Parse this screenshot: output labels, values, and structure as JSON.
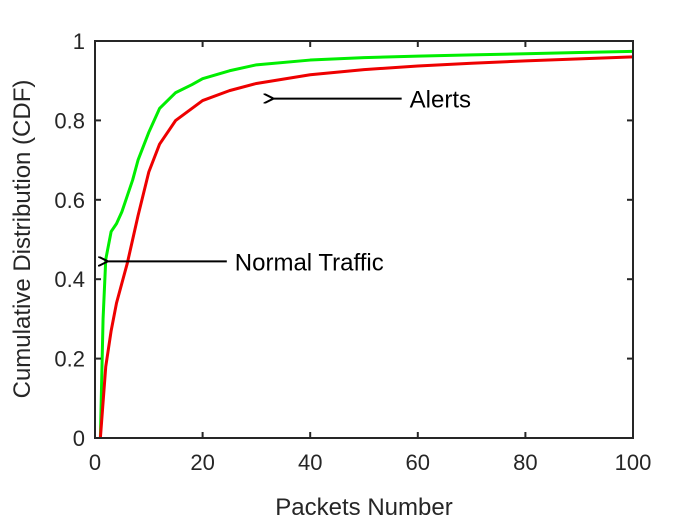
{
  "chart_data": {
    "type": "line",
    "title": "",
    "xlabel": "Packets Number",
    "ylabel": "Cumulative Distribution (CDF)",
    "xlim": [
      0,
      100
    ],
    "ylim": [
      0,
      1
    ],
    "x_ticks": [
      "0",
      "20",
      "40",
      "60",
      "80",
      "100"
    ],
    "y_ticks": [
      "0",
      "0.2",
      "0.4",
      "0.6",
      "0.8",
      "1"
    ],
    "grid": false,
    "legend": "none",
    "series": [
      {
        "color": "#00ee00",
        "x": [
          1,
          1.5,
          2,
          3,
          4,
          5,
          6,
          7,
          8,
          10,
          12,
          15,
          18,
          20,
          25,
          30,
          40,
          50,
          60,
          70,
          80,
          90,
          100
        ],
        "y": [
          0.0,
          0.3,
          0.45,
          0.52,
          0.54,
          0.57,
          0.61,
          0.65,
          0.7,
          0.77,
          0.83,
          0.87,
          0.89,
          0.905,
          0.925,
          0.94,
          0.952,
          0.958,
          0.962,
          0.965,
          0.968,
          0.971,
          0.974
        ]
      },
      {
        "color": "#ee0000",
        "x": [
          1,
          2,
          3,
          4,
          5,
          6,
          7,
          8,
          10,
          12,
          15,
          20,
          25,
          30,
          40,
          50,
          60,
          70,
          80,
          90,
          100
        ],
        "y": [
          0.0,
          0.18,
          0.27,
          0.34,
          0.39,
          0.44,
          0.5,
          0.56,
          0.67,
          0.74,
          0.8,
          0.85,
          0.875,
          0.893,
          0.915,
          0.928,
          0.937,
          0.944,
          0.95,
          0.955,
          0.96
        ]
      }
    ],
    "annotations": [
      {
        "text": "Alerts",
        "arrow_from": [
          57,
          0.855
        ],
        "arrow_to": [
          33,
          0.855
        ]
      },
      {
        "text": "Normal Traffic",
        "arrow_from": [
          24.5,
          0.445
        ],
        "arrow_to": [
          2.2,
          0.445
        ]
      }
    ]
  }
}
